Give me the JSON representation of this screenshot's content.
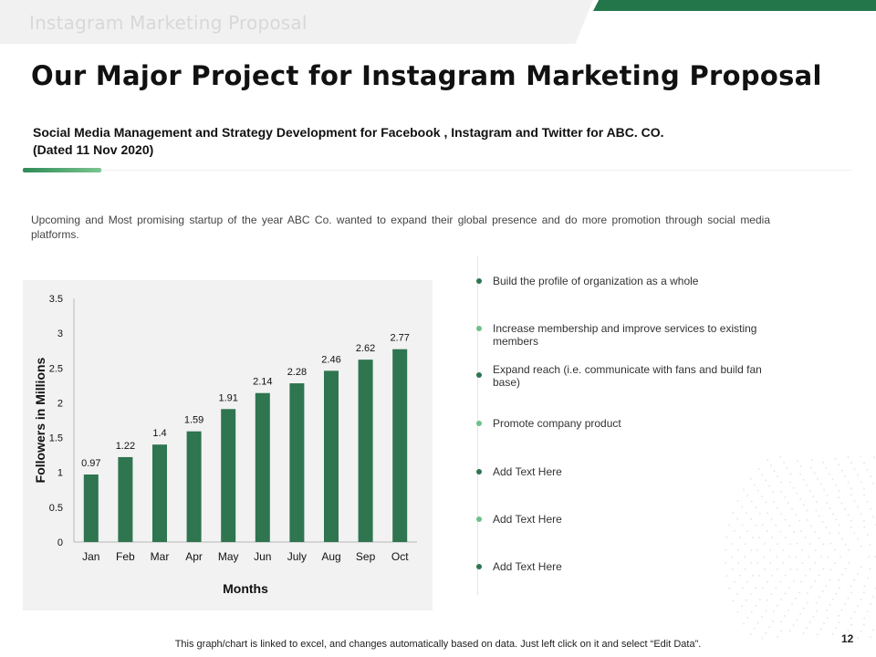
{
  "header": {
    "banner_text": "Instagram Marketing Proposal",
    "title": "Our Major Project for Instagram Marketing Proposal"
  },
  "subtitle": {
    "line1": "Social Media Management and Strategy Development for Facebook , Instagram and Twitter for ABC. CO.",
    "line2": "(Dated 11 Nov 2020)"
  },
  "intro": "Upcoming and Most promising startup of the year ABC Co. wanted to expand their global presence and do more promotion through social media platforms.",
  "chart_data": {
    "type": "bar",
    "title": "",
    "categories": [
      "Jan",
      "Feb",
      "Mar",
      "Apr",
      "May",
      "Jun",
      "July",
      "Aug",
      "Sep",
      "Oct"
    ],
    "values": [
      0.97,
      1.22,
      1.4,
      1.59,
      1.91,
      2.14,
      2.28,
      2.46,
      2.62,
      2.77
    ],
    "xlabel": "Months",
    "ylabel": "Followers in Millions",
    "ylim": [
      0,
      3.5
    ],
    "yticks": [
      0,
      0.5,
      1,
      1.5,
      2,
      2.5,
      3,
      3.5
    ],
    "grid": false,
    "bar_color": "#2e7550"
  },
  "bullets": [
    {
      "text": "Build the profile of organization as a whole",
      "color": "#2e7550"
    },
    {
      "text": "Increase membership and improve services to existing members",
      "color": "#6cc18a"
    },
    {
      "text": "Expand reach (i.e. communicate with fans and build fan base)",
      "color": "#2e7550"
    },
    {
      "text": "Promote company product",
      "color": "#6cc18a"
    },
    {
      "text": "Add Text Here",
      "color": "#2e7550"
    },
    {
      "text": "Add Text Here",
      "color": "#6cc18a"
    },
    {
      "text": "Add Text Here",
      "color": "#2e7550"
    }
  ],
  "footnote": "This graph/chart is linked to excel, and changes automatically based on data. Just left click on it and select “Edit Data”.",
  "page_number": "12",
  "colors": {
    "accent": "#23764a",
    "accent_light": "#6cc18a"
  }
}
